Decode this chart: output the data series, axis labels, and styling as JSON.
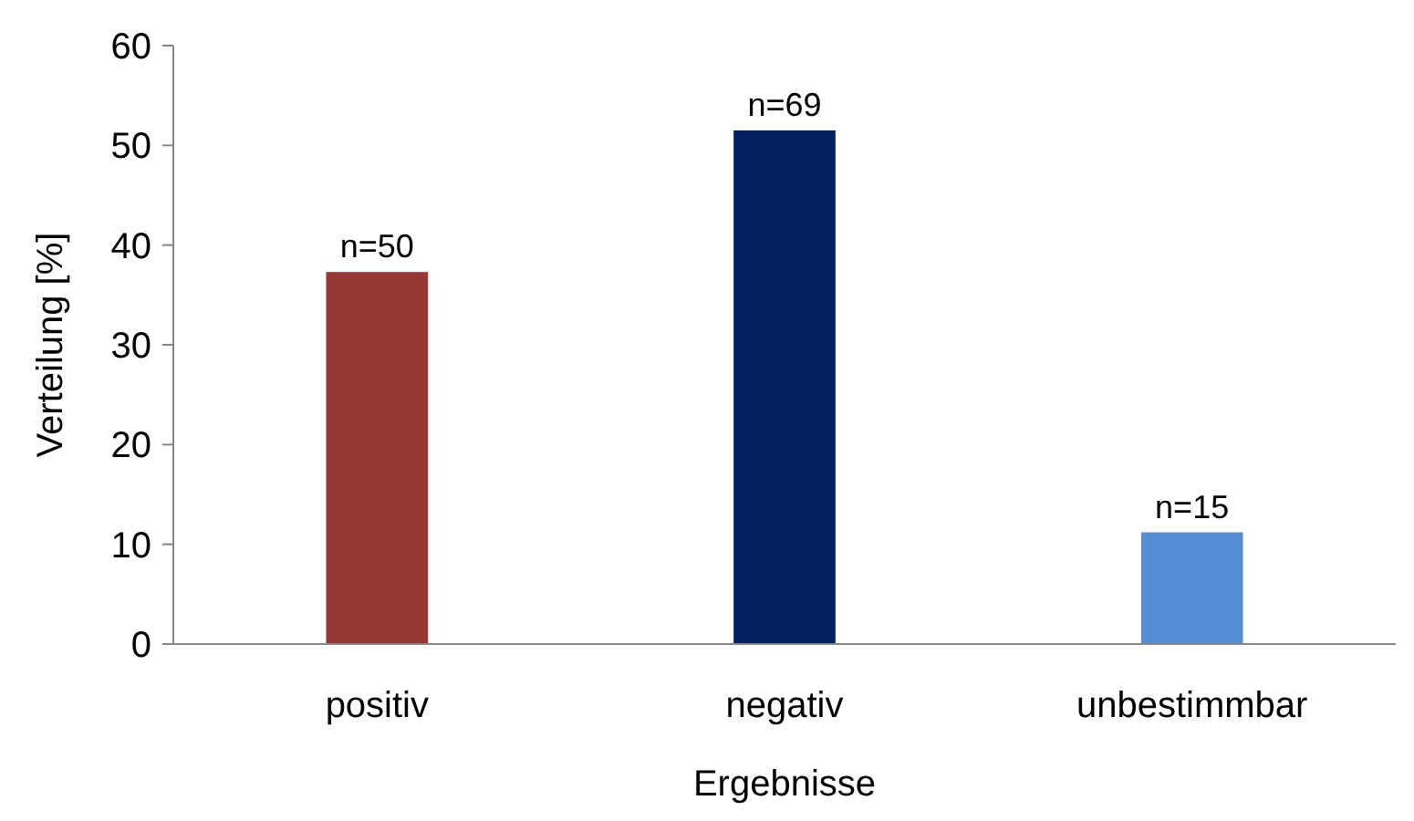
{
  "chart_data": {
    "type": "bar",
    "xlabel": "Ergebnisse",
    "ylabel": "Verteilung [%]",
    "categories": [
      "positiv",
      "negativ",
      "unbestimmbar"
    ],
    "values": [
      37.3,
      51.5,
      11.2
    ],
    "colors": [
      "#953735",
      "#002060",
      "#558ed5"
    ],
    "annotations": [
      {
        "text": "n=50",
        "x": "positiv",
        "y": 37.3
      },
      {
        "text": "n=69",
        "x": "negativ",
        "y": 51.5
      },
      {
        "text": "n=15",
        "x": "unbestimmbar",
        "y": 11.2
      }
    ],
    "ylim": [
      0,
      60
    ],
    "yticks": [
      0,
      10,
      20,
      30,
      40,
      50,
      60
    ],
    "grid": false
  }
}
